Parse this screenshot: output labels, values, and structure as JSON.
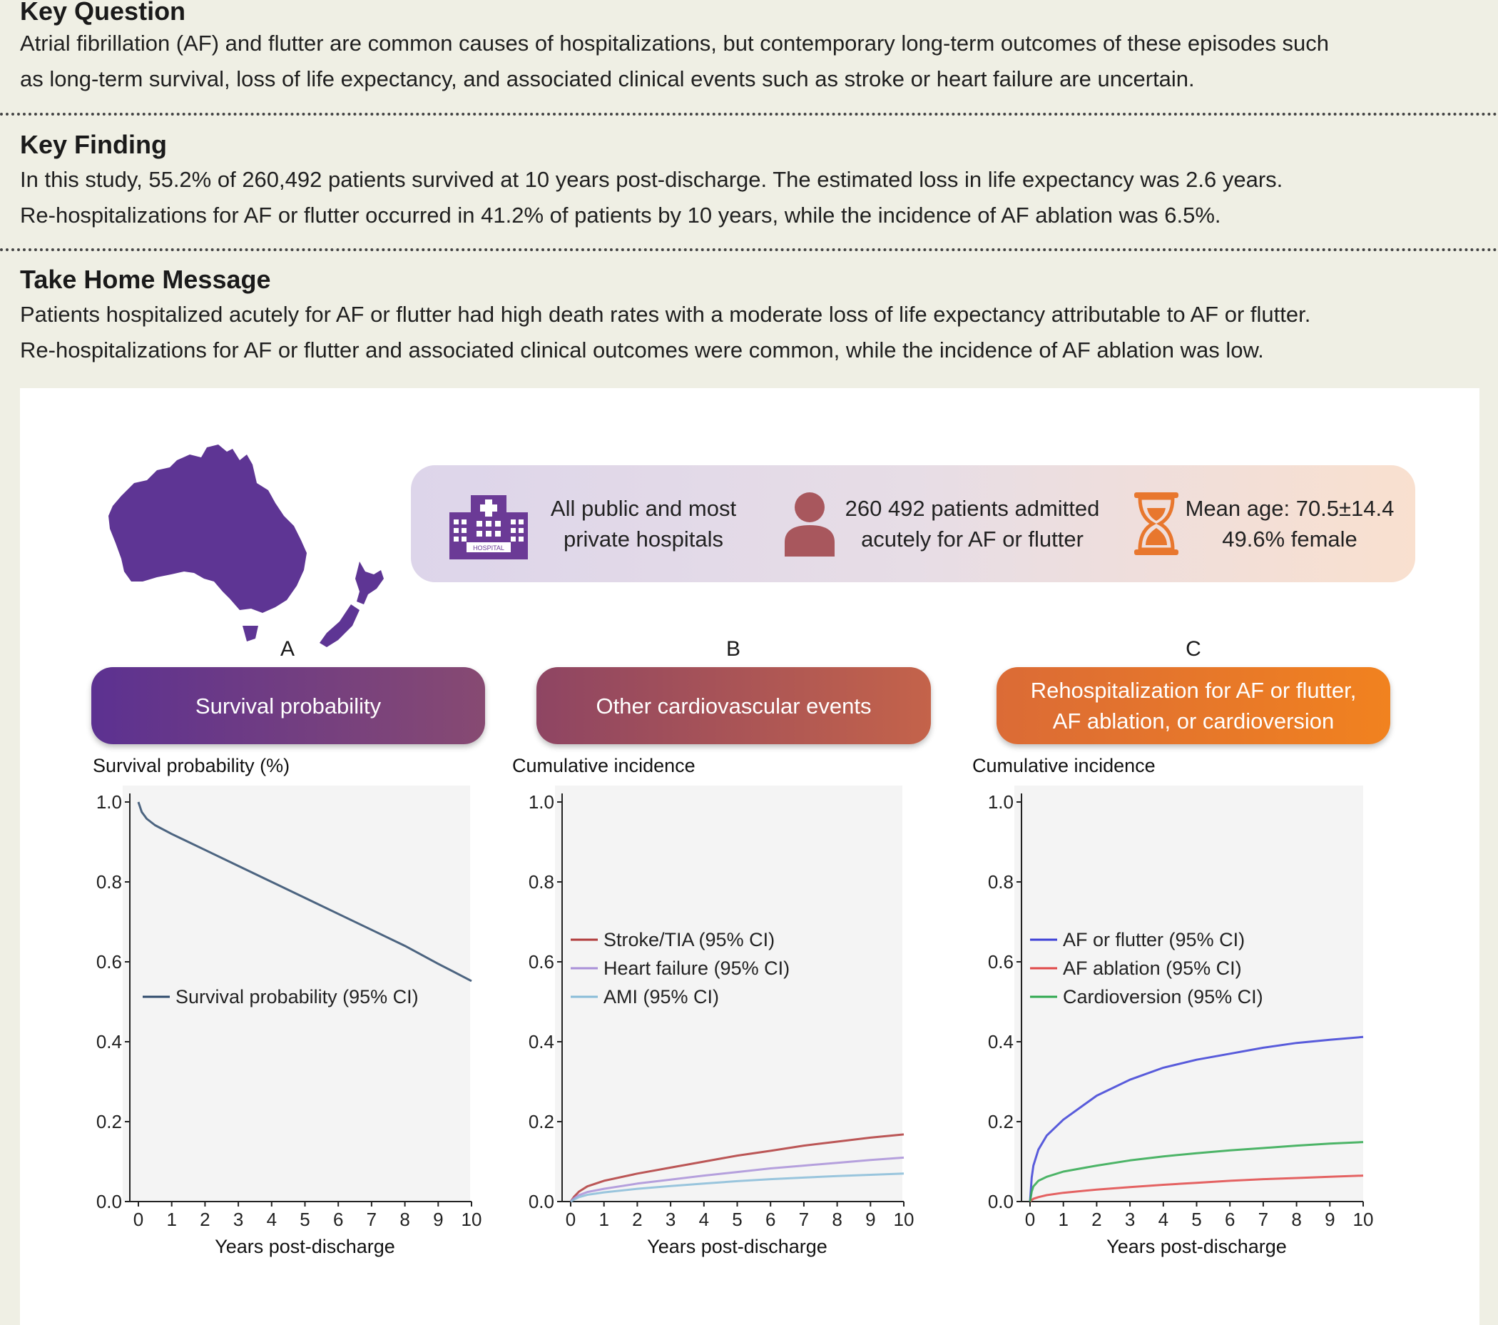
{
  "key_question": {
    "heading": "Key Question",
    "lines": [
      "Atrial fibrillation (AF) and flutter are common causes of hospitalizations, but contemporary long-term outcomes of these episodes such",
      "as long-term survival, loss of life expectancy, and associated clinical events such as stroke or heart failure are uncertain."
    ]
  },
  "key_finding": {
    "heading": "Key Finding",
    "lines": [
      "In this study, 55.2% of 260,492 patients survived at 10 years post-discharge. The estimated loss in life expectancy was 2.6 years.",
      "Re-hospitalizations for AF or flutter occurred in 41.2% of patients by 10 years, while the incidence of AF ablation was 6.5%."
    ]
  },
  "take_home": {
    "heading": "Take Home Message",
    "lines": [
      "Patients hospitalized acutely for AF or flutter had high death rates with a moderate loss of life expectancy attributable to AF or flutter.",
      "Re-hospitalizations for AF or flutter and associated clinical outcomes were common, while the incidence of AF ablation was low."
    ]
  },
  "info_bar": {
    "hospitals": [
      "All public and most",
      "private hospitals"
    ],
    "hospital_sign": "HOSPITAL",
    "patients": [
      "260 492 patients admitted",
      "acutely for AF or flutter"
    ],
    "age": [
      "Mean age: 70.5±14.4",
      "49.6% female"
    ],
    "colors": {
      "hospital_icon": "#6b3a96",
      "person_icon": "#a8575d",
      "hourglass_icon": "#e8772e"
    }
  },
  "panels": [
    {
      "letter": "A",
      "title": [
        "Survival probability"
      ],
      "gradient": [
        "#5c3191",
        "#874a72"
      ]
    },
    {
      "letter": "B",
      "title": [
        "Other cardiovascular events"
      ],
      "gradient": [
        "#8e4563",
        "#c4634a"
      ]
    },
    {
      "letter": "C",
      "title": [
        "Rehospitalization for AF or flutter,",
        "AF ablation, or cardioversion"
      ],
      "gradient": [
        "#db6b36",
        "#f1821f"
      ]
    }
  ],
  "chart_data": [
    {
      "type": "line",
      "ylabel": "Survival probability (%)",
      "xlabel": "Years post-discharge",
      "xlim": [
        0,
        10
      ],
      "ylim": [
        0,
        1
      ],
      "xticks": [
        "0",
        "1",
        "2",
        "3",
        "4",
        "5",
        "6",
        "7",
        "8",
        "9",
        "10"
      ],
      "yticks": [
        "0.0",
        "0.2",
        "0.4",
        "0.6",
        "0.8",
        "1.0"
      ],
      "legend_position": "center-left",
      "x": [
        0,
        0.1,
        0.25,
        0.5,
        1,
        2,
        3,
        4,
        5,
        6,
        7,
        8,
        9,
        10
      ],
      "series": [
        {
          "name": "Survival probability (95% CI)",
          "color": "#2e4a6b",
          "values": [
            1.0,
            0.975,
            0.958,
            0.942,
            0.92,
            0.88,
            0.84,
            0.8,
            0.76,
            0.72,
            0.68,
            0.64,
            0.595,
            0.552
          ]
        }
      ]
    },
    {
      "type": "line",
      "ylabel": "Cumulative incidence",
      "xlabel": "Years post-discharge",
      "xlim": [
        0,
        10
      ],
      "ylim": [
        0,
        1
      ],
      "xticks": [
        "0",
        "1",
        "2",
        "3",
        "4",
        "5",
        "6",
        "7",
        "8",
        "9",
        "10"
      ],
      "yticks": [
        "0.0",
        "0.2",
        "0.4",
        "0.6",
        "0.8",
        "1.0"
      ],
      "legend_position": "center-left",
      "x": [
        0,
        0.1,
        0.25,
        0.5,
        1,
        2,
        3,
        4,
        5,
        6,
        7,
        8,
        9,
        10
      ],
      "series": [
        {
          "name": "Stroke/TIA (95% CI)",
          "color": "#b03a3a",
          "values": [
            0,
            0.012,
            0.025,
            0.038,
            0.052,
            0.07,
            0.085,
            0.1,
            0.115,
            0.127,
            0.14,
            0.15,
            0.16,
            0.168
          ]
        },
        {
          "name": "Heart failure (95% CI)",
          "color": "#a990d8",
          "values": [
            0,
            0.008,
            0.016,
            0.024,
            0.032,
            0.045,
            0.055,
            0.065,
            0.074,
            0.083,
            0.09,
            0.097,
            0.104,
            0.11
          ]
        },
        {
          "name": "AMI (95% CI)",
          "color": "#88bcd8",
          "values": [
            0,
            0.005,
            0.011,
            0.017,
            0.023,
            0.032,
            0.039,
            0.045,
            0.051,
            0.056,
            0.06,
            0.064,
            0.067,
            0.07
          ]
        }
      ]
    },
    {
      "type": "line",
      "ylabel": "Cumulative incidence",
      "xlabel": "Years post-discharge",
      "xlim": [
        0,
        10
      ],
      "ylim": [
        0,
        1
      ],
      "xticks": [
        "0",
        "1",
        "2",
        "3",
        "4",
        "5",
        "6",
        "7",
        "8",
        "9",
        "10"
      ],
      "yticks": [
        "0.0",
        "0.2",
        "0.4",
        "0.6",
        "0.8",
        "1.0"
      ],
      "legend_position": "center-left",
      "x": [
        0,
        0.05,
        0.1,
        0.25,
        0.5,
        1,
        2,
        3,
        4,
        5,
        6,
        7,
        8,
        9,
        10
      ],
      "series": [
        {
          "name": "AF or flutter (95% CI)",
          "color": "#3c3fd6",
          "values": [
            0,
            0.06,
            0.09,
            0.13,
            0.165,
            0.205,
            0.265,
            0.305,
            0.335,
            0.355,
            0.37,
            0.385,
            0.397,
            0.405,
            0.412
          ]
        },
        {
          "name": "AF ablation (95% CI)",
          "color": "#e04848",
          "values": [
            0,
            0.004,
            0.007,
            0.011,
            0.016,
            0.022,
            0.03,
            0.036,
            0.042,
            0.047,
            0.052,
            0.056,
            0.059,
            0.062,
            0.065
          ]
        },
        {
          "name": "Cardioversion (95% CI)",
          "color": "#2ea84e",
          "values": [
            0,
            0.025,
            0.038,
            0.052,
            0.062,
            0.075,
            0.09,
            0.103,
            0.113,
            0.121,
            0.128,
            0.134,
            0.14,
            0.145,
            0.149
          ]
        }
      ]
    }
  ]
}
